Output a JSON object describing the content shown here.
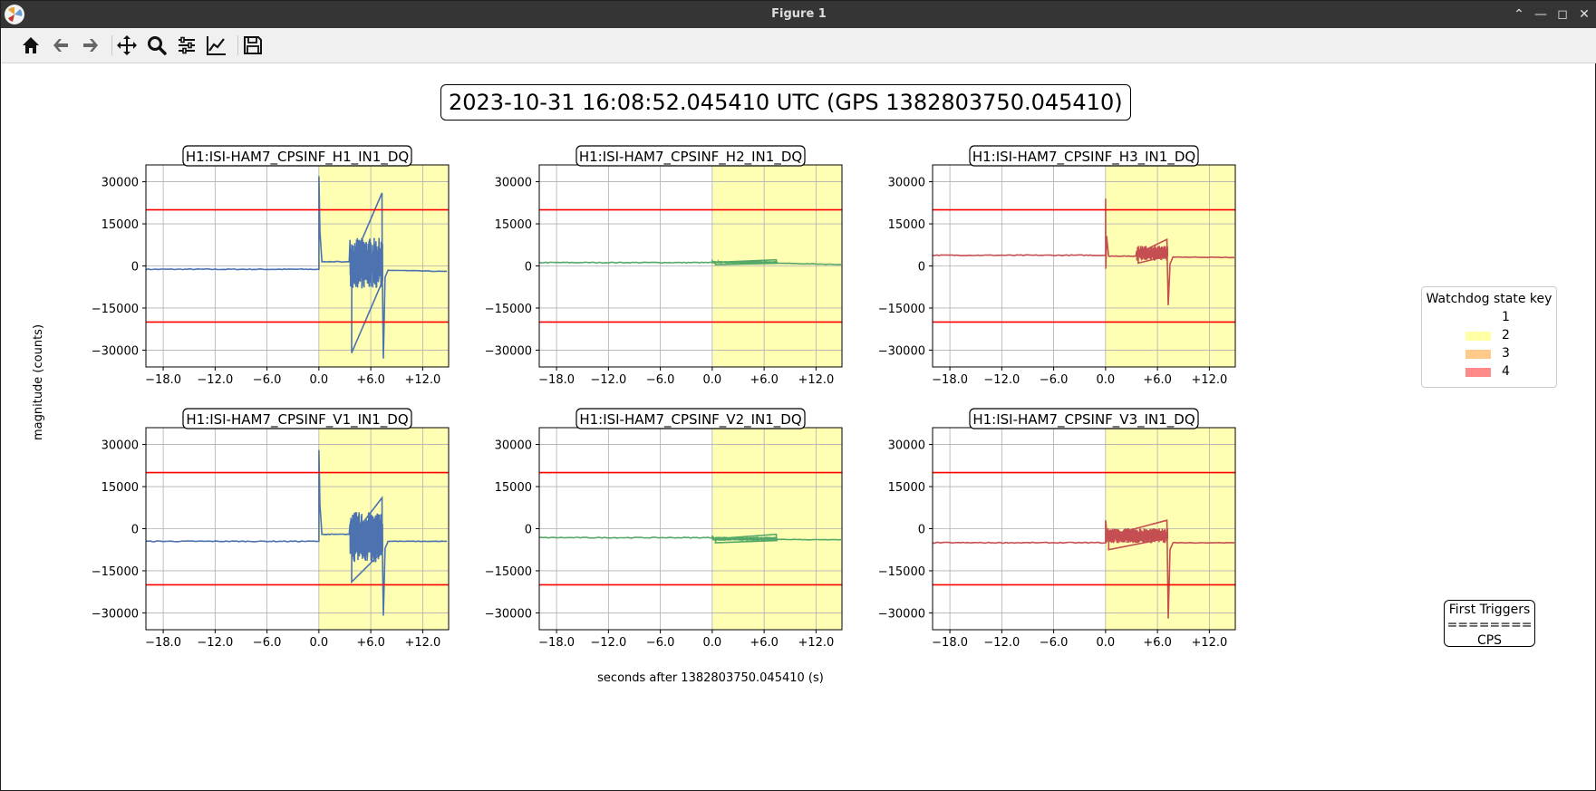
{
  "window": {
    "title": "Figure 1"
  },
  "toolbar": {
    "buttons": [
      {
        "name": "home-icon"
      },
      {
        "name": "back-icon"
      },
      {
        "name": "forward-icon"
      },
      {
        "name": "pan-icon"
      },
      {
        "name": "zoom-icon"
      },
      {
        "name": "configure-subplots-icon"
      },
      {
        "name": "edit-axis-icon"
      },
      {
        "name": "save-icon"
      }
    ]
  },
  "figure": {
    "suptitle": "2023-10-31 16:08:52.045410 UTC (GPS 1382803750.045410)",
    "xlabel": "seconds after 1382803750.045410 (s)",
    "ylabel": "magnitude (counts)",
    "legend": {
      "title": "Watchdog state key",
      "entries": [
        {
          "label": "1",
          "color": "#ffffff"
        },
        {
          "label": "2",
          "color": "#ffffa6"
        },
        {
          "label": "3",
          "color": "#ffc98a"
        },
        {
          "label": "4",
          "color": "#ff8a8a"
        }
      ]
    },
    "triggers": {
      "line1": "First Triggers",
      "line2": "========",
      "line3": "CPS"
    }
  },
  "chart_data": {
    "type": "line",
    "xlim": [
      -20,
      15
    ],
    "ylim": [
      -36000,
      36000
    ],
    "x_ticks": [
      -18,
      -12,
      -6,
      0,
      6,
      12
    ],
    "x_tick_labels": [
      "−18.0",
      "−12.0",
      "−6.0",
      "0.0",
      "+6.0",
      "+12.0"
    ],
    "y_ticks": [
      30000,
      15000,
      0,
      -15000,
      -30000
    ],
    "y_tick_labels": [
      "30000",
      "15000",
      "0",
      "−15000",
      "−30000"
    ],
    "threshold_lines": [
      20000,
      -20000
    ],
    "threshold_color": "#ff0000",
    "state_span": {
      "x_start": 0,
      "x_end": 15,
      "color": "#ffffb3"
    },
    "grid": true,
    "subplots": [
      {
        "title": "H1:ISI-HAM7_CPSINF_H1_IN1_DQ",
        "color": "#4c72b0",
        "baseline_before": -1200,
        "jump": {
          "x": 0,
          "peak": 32000,
          "trough": null
        },
        "settle": 1500,
        "burst": {
          "x_start": 3.6,
          "x_end": 7.4,
          "center": 1000,
          "amp": 10000,
          "min": -31000,
          "max": 26000
        },
        "tail": {
          "x": 7.4,
          "spike_min": -33000,
          "level_after": -1500,
          "level_end": -2000
        }
      },
      {
        "title": "H1:ISI-HAM7_CPSINF_H2_IN1_DQ",
        "color": "#55a868",
        "baseline_before": 1200,
        "jump": {
          "x": 0,
          "peak": 1800,
          "trough": null
        },
        "settle": 1300,
        "burst": {
          "x_start": 0,
          "x_end": 7.5,
          "center": 1300,
          "amp": 500,
          "min": 500,
          "max": 2200
        },
        "tail": {
          "x": 7.5,
          "spike_min": null,
          "level_after": 1000,
          "level_end": 500
        }
      },
      {
        "title": "H1:ISI-HAM7_CPSINF_H3_IN1_DQ",
        "color": "#c44e52",
        "baseline_before": 3800,
        "jump": {
          "x": 0,
          "peak": 24000,
          "trough": -1000
        },
        "settle": 3500,
        "burst": {
          "x_start": 3.6,
          "x_end": 7.2,
          "center": 4500,
          "amp": 3000,
          "min": 1000,
          "max": 9500
        },
        "tail": {
          "x": 7.2,
          "spike_min": -14000,
          "level_after": 3200,
          "level_end": 3000
        }
      },
      {
        "title": "H1:ISI-HAM7_CPSINF_V1_IN1_DQ",
        "color": "#4c72b0",
        "baseline_before": -4500,
        "jump": {
          "x": 0,
          "peak": 28000,
          "trough": null
        },
        "settle": -2000,
        "burst": {
          "x_start": 3.6,
          "x_end": 7.4,
          "center": -3000,
          "amp": 10000,
          "min": -19000,
          "max": 11000
        },
        "tail": {
          "x": 7.4,
          "spike_min": -31000,
          "level_after": -4500,
          "level_end": -4500
        }
      },
      {
        "title": "H1:ISI-HAM7_CPSINF_V2_IN1_DQ",
        "color": "#55a868",
        "baseline_before": -3200,
        "jump": {
          "x": 0,
          "peak": -2500,
          "trough": null
        },
        "settle": -3500,
        "burst": {
          "x_start": 0,
          "x_end": 7.5,
          "center": -3600,
          "amp": 800,
          "min": -5000,
          "max": -2000
        },
        "tail": {
          "x": 7.5,
          "spike_min": null,
          "level_after": -3800,
          "level_end": -4000
        }
      },
      {
        "title": "H1:ISI-HAM7_CPSINF_V3_IN1_DQ",
        "color": "#c44e52",
        "baseline_before": -5000,
        "jump": {
          "x": 0,
          "peak": 3000,
          "trough": null
        },
        "settle": -2500,
        "burst": {
          "x_start": 0,
          "x_end": 7.2,
          "center": -2500,
          "amp": 3000,
          "min": -7500,
          "max": 3000
        },
        "tail": {
          "x": 7.2,
          "spike_min": -32000,
          "level_after": -5000,
          "level_end": -5000
        }
      }
    ]
  }
}
